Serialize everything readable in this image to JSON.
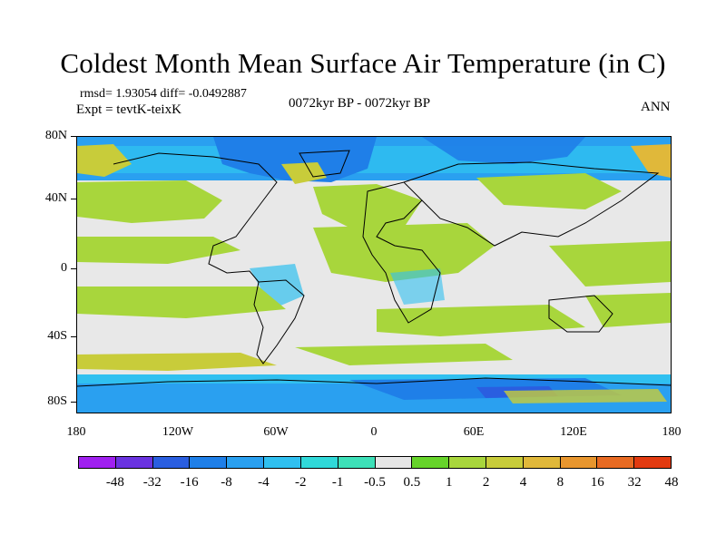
{
  "header": {
    "title": "Coldest Month Mean Surface Air Temperature (in C)",
    "stats": "rmsd= 1.93054 diff= -0.0492887",
    "experiment": "Expt = tevtK-teixK",
    "period": "0072kyr BP - 0072kyr BP",
    "season": "ANN"
  },
  "map": {
    "projection": "cylindrical equidistant",
    "y_tick_labels": [
      "80N",
      "40N",
      "0",
      "40S",
      "80S"
    ],
    "x_tick_labels": [
      "180",
      "120W",
      "60W",
      "0",
      "60E",
      "120E",
      "180"
    ],
    "background_note": "field anomaly shaded, coastlines in black"
  },
  "colorbar": {
    "labels": [
      "-48",
      "-32",
      "-16",
      "-8",
      "-4",
      "-2",
      "-1",
      "-0.5",
      "0.5",
      "1",
      "2",
      "4",
      "8",
      "16",
      "32",
      "48"
    ],
    "colors": [
      "#a020f0",
      "#6a33e0",
      "#2a5ee0",
      "#1f7fe8",
      "#2aa0f0",
      "#30c0f0",
      "#30d9d9",
      "#3de0b8",
      "#e6e6e6",
      "#66d42a",
      "#a8d63c",
      "#c8cc3a",
      "#e0b83a",
      "#e8962e",
      "#e86a22",
      "#e23a10"
    ]
  }
}
